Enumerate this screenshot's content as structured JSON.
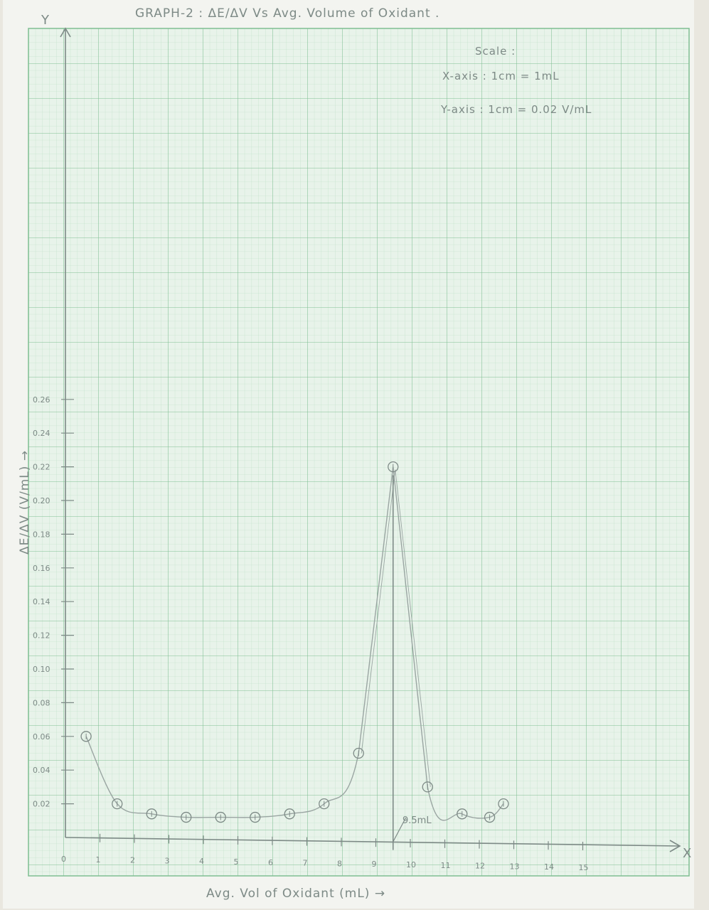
{
  "title": "GRAPH-2 : ΔE/ΔV Vs Avg. Volume of Oxidant .",
  "scale": {
    "heading": "Scale :",
    "x_axis": "X-axis : 1cm = 1mL",
    "y_axis": "Y-axis : 1cm = 0.02 V/mL"
  },
  "annotation": "9.5mL",
  "colors": {
    "paper": "#f3f4f0",
    "grid_major": "#7fbf92",
    "grid_minor": "#b9dec3",
    "pencil": "#7d8a86",
    "curve": "#9aa5a2"
  },
  "chart_data": {
    "type": "line",
    "xlabel": "Avg. Vol of Oxidant (mL) →",
    "ylabel": "ΔE/ΔV (V/mL) →",
    "x_axis_letter": "X",
    "y_axis_letter": "Y",
    "x_ticks": [
      "0",
      "1",
      "2",
      "3",
      "4",
      "5",
      "6",
      "7",
      "8",
      "9",
      "10",
      "11",
      "12",
      "13",
      "14",
      "15"
    ],
    "y_ticks": [
      "0.02",
      "0.04",
      "0.06",
      "0.08",
      "0.10",
      "0.12",
      "0.14",
      "0.16",
      "0.18",
      "0.20",
      "0.22",
      "0.24",
      "0.26"
    ],
    "xlim": [
      0,
      15
    ],
    "ylim": [
      0,
      0.26
    ],
    "grid": true,
    "series": [
      {
        "x": [
          0.6,
          1.5,
          2.5,
          3.5,
          4.5,
          5.5,
          6.5,
          7.5,
          8.5,
          9.5,
          10.5,
          11.5,
          12.3,
          12.7
        ],
        "y": [
          0.06,
          0.02,
          0.014,
          0.012,
          0.012,
          0.012,
          0.014,
          0.02,
          0.05,
          0.22,
          0.03,
          0.014,
          0.012,
          0.02
        ]
      }
    ],
    "equivalence_point": 9.5
  }
}
